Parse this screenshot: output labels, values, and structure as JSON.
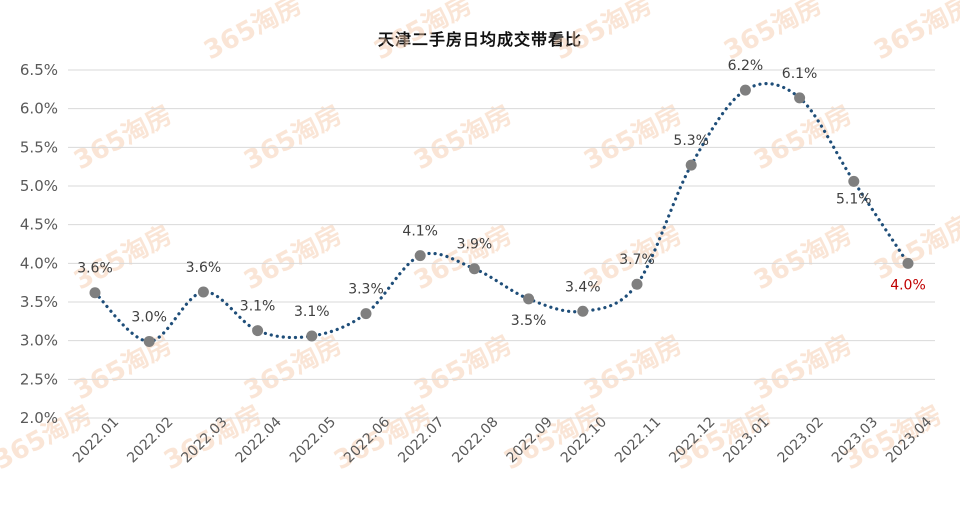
{
  "chart_data": {
    "type": "line",
    "title": "天津二手房日均成交带看比",
    "x": [
      "2022.01",
      "2022.02",
      "2022.03",
      "2022.04",
      "2022.05",
      "2022.06",
      "2022.07",
      "2022.08",
      "2022.09",
      "2022.10",
      "2022.11",
      "2022.12",
      "2023.01",
      "2023.02",
      "2023.03",
      "2023.04"
    ],
    "values": [
      3.62,
      2.99,
      3.63,
      3.13,
      3.06,
      3.35,
      4.1,
      3.93,
      3.54,
      3.38,
      3.73,
      5.27,
      6.24,
      6.14,
      5.06,
      4.0
    ],
    "data_labels": [
      "3.6%",
      "3.0%",
      "3.6%",
      "3.1%",
      "3.1%",
      "3.3%",
      "4.1%",
      "3.9%",
      "3.5%",
      "3.4%",
      "3.7%",
      "5.3%",
      "6.2%",
      "6.1%",
      "5.1%",
      "4.0%"
    ],
    "y_ticks": [
      "2.0%",
      "2.5%",
      "3.0%",
      "3.5%",
      "4.0%",
      "4.5%",
      "5.0%",
      "5.5%",
      "6.0%",
      "6.5%"
    ],
    "ylim": [
      2.0,
      6.5
    ],
    "grid": true,
    "line_color": "#1f4e79",
    "marker_color": "#7f7f7f",
    "highlight_color": "#c00000",
    "watermark_text": "365淘房"
  }
}
